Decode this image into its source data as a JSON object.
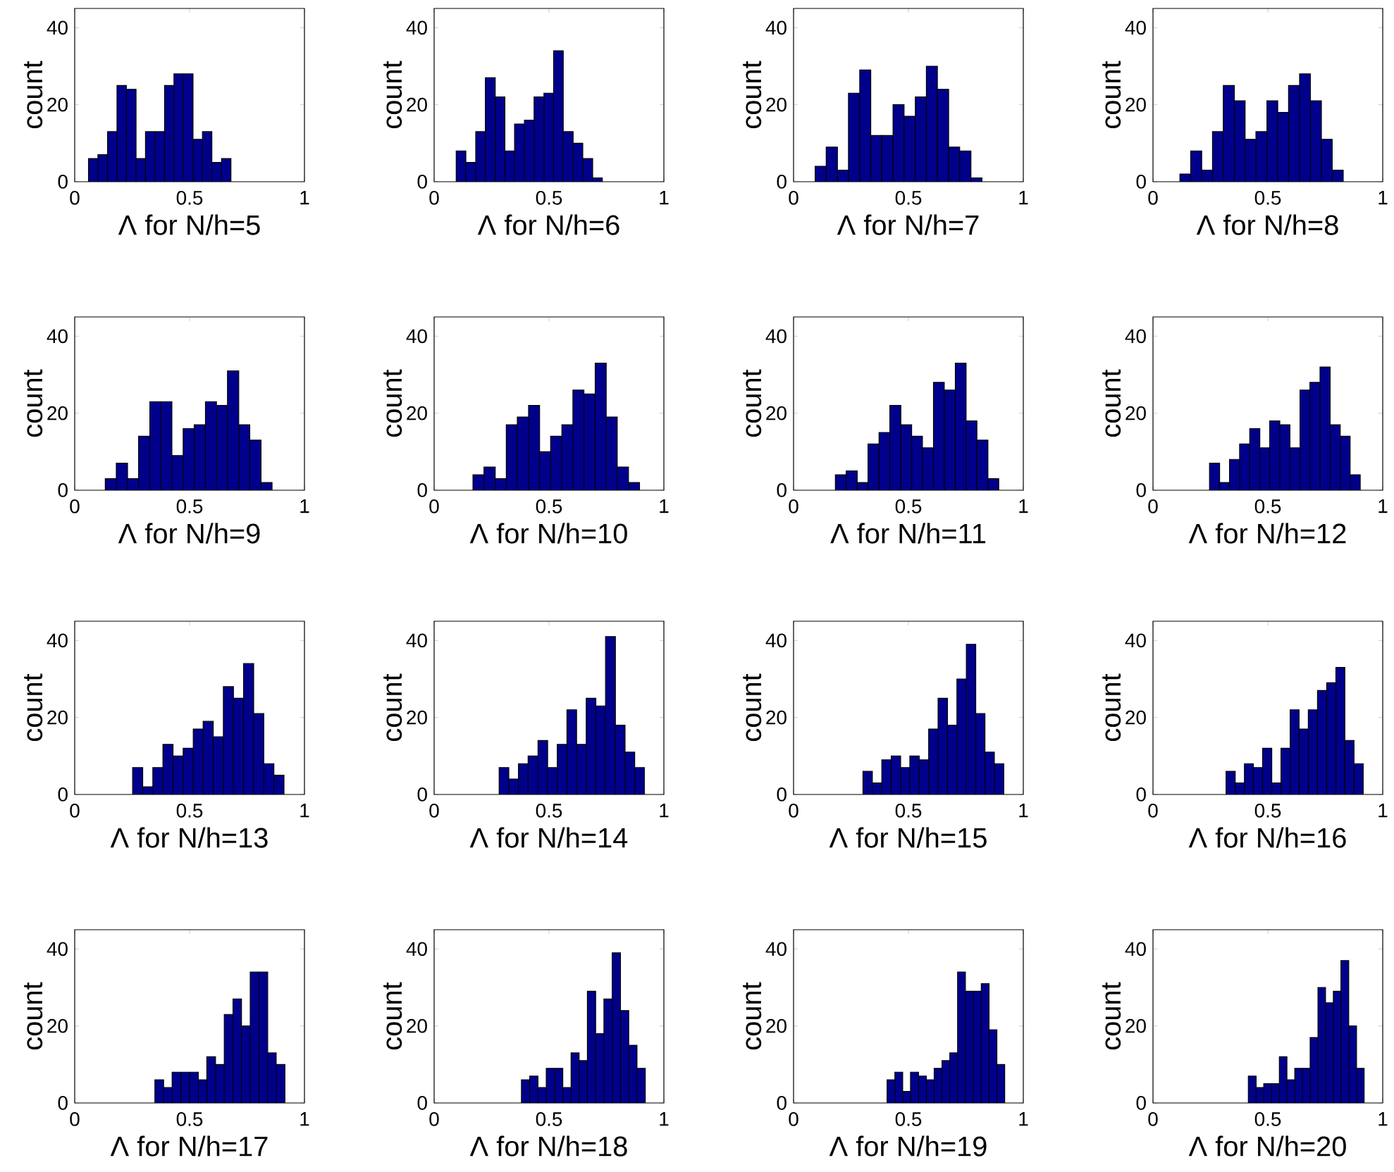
{
  "chart_data": [
    {
      "type": "histogram",
      "xlabel": "Λ for N/h=5",
      "ylabel": "count",
      "color": "#00008b",
      "xlim": [
        0,
        1
      ],
      "xticks": [
        0,
        0.5,
        1
      ],
      "ylim": [
        0,
        45
      ],
      "yticks": [
        0,
        20,
        40
      ],
      "bins": [
        0.06,
        0.101,
        0.143,
        0.184,
        0.225,
        0.267,
        0.308,
        0.349,
        0.391,
        0.432,
        0.473,
        0.515,
        0.556,
        0.597,
        0.639,
        0.68
      ],
      "values": [
        6,
        7,
        13,
        25,
        24,
        6,
        13,
        13,
        25,
        28,
        28,
        11,
        13,
        5,
        6
      ]
    },
    {
      "type": "histogram",
      "xlabel": "Λ for N/h=6",
      "ylabel": "count",
      "color": "#00008b",
      "xlim": [
        0,
        1
      ],
      "xticks": [
        0,
        0.5,
        1
      ],
      "ylim": [
        0,
        45
      ],
      "yticks": [
        0,
        20,
        40
      ],
      "bins": [
        0.096,
        0.138,
        0.181,
        0.223,
        0.266,
        0.308,
        0.35,
        0.393,
        0.435,
        0.478,
        0.52,
        0.562,
        0.605,
        0.647,
        0.69,
        0.732
      ],
      "values": [
        8,
        5,
        13,
        27,
        22,
        8,
        15,
        16,
        22,
        23,
        34,
        13,
        10,
        6,
        1
      ]
    },
    {
      "type": "histogram",
      "xlabel": "Λ for N/h=7",
      "ylabel": "count",
      "color": "#00008b",
      "xlim": [
        0,
        1
      ],
      "xticks": [
        0,
        0.5,
        1
      ],
      "ylim": [
        0,
        45
      ],
      "yticks": [
        0,
        20,
        40
      ],
      "bins": [
        0.094,
        0.142,
        0.191,
        0.239,
        0.288,
        0.336,
        0.384,
        0.433,
        0.481,
        0.53,
        0.578,
        0.626,
        0.675,
        0.723,
        0.772,
        0.82
      ],
      "values": [
        4,
        9,
        3,
        23,
        29,
        12,
        12,
        20,
        17,
        22,
        30,
        24,
        9,
        8,
        1
      ]
    },
    {
      "type": "histogram",
      "xlabel": "Λ for N/h=8",
      "ylabel": "count",
      "color": "#00008b",
      "xlim": [
        0,
        1
      ],
      "xticks": [
        0,
        0.5,
        1
      ],
      "ylim": [
        0,
        45
      ],
      "yticks": [
        0,
        20,
        40
      ],
      "bins": [
        0.117,
        0.164,
        0.212,
        0.259,
        0.306,
        0.354,
        0.401,
        0.448,
        0.496,
        0.543,
        0.59,
        0.638,
        0.685,
        0.733,
        0.78,
        0.828
      ],
      "values": [
        2,
        8,
        3,
        13,
        25,
        21,
        11,
        13,
        21,
        18,
        25,
        28,
        21,
        11,
        3
      ]
    },
    {
      "type": "histogram",
      "xlabel": "Λ for N/h=9",
      "ylabel": "count",
      "color": "#00008b",
      "xlim": [
        0,
        1
      ],
      "xticks": [
        0,
        0.5,
        1
      ],
      "ylim": [
        0,
        45
      ],
      "yticks": [
        0,
        20,
        40
      ],
      "bins": [
        0.133,
        0.181,
        0.23,
        0.278,
        0.327,
        0.375,
        0.423,
        0.472,
        0.52,
        0.569,
        0.617,
        0.665,
        0.714,
        0.762,
        0.811,
        0.859
      ],
      "values": [
        3,
        7,
        3,
        14,
        23,
        23,
        9,
        16,
        17,
        23,
        22,
        31,
        17,
        13,
        2
      ]
    },
    {
      "type": "histogram",
      "xlabel": "Λ for N/h=10",
      "ylabel": "count",
      "color": "#00008b",
      "xlim": [
        0,
        1
      ],
      "xticks": [
        0,
        0.5,
        1
      ],
      "ylim": [
        0,
        45
      ],
      "yticks": [
        0,
        20,
        40
      ],
      "bins": [
        0.169,
        0.217,
        0.266,
        0.314,
        0.362,
        0.411,
        0.459,
        0.507,
        0.556,
        0.604,
        0.652,
        0.701,
        0.749,
        0.797,
        0.846,
        0.894
      ],
      "values": [
        4,
        6,
        3,
        17,
        19,
        22,
        10,
        14,
        17,
        26,
        25,
        33,
        19,
        6,
        2
      ]
    },
    {
      "type": "histogram",
      "xlabel": "Λ for N/h=11",
      "ylabel": "count",
      "color": "#00008b",
      "xlim": [
        0,
        1
      ],
      "xticks": [
        0,
        0.5,
        1
      ],
      "ylim": [
        0,
        45
      ],
      "yticks": [
        0,
        20,
        40
      ],
      "bins": [
        0.182,
        0.229,
        0.277,
        0.324,
        0.372,
        0.419,
        0.467,
        0.514,
        0.561,
        0.609,
        0.656,
        0.704,
        0.751,
        0.798,
        0.846,
        0.893
      ],
      "values": [
        4,
        5,
        2,
        12,
        15,
        22,
        17,
        14,
        11,
        28,
        26,
        33,
        18,
        13,
        3
      ]
    },
    {
      "type": "histogram",
      "xlabel": "Λ for N/h=12",
      "ylabel": "count",
      "color": "#00008b",
      "xlim": [
        0,
        1
      ],
      "xticks": [
        0,
        0.5,
        1
      ],
      "ylim": [
        0,
        45
      ],
      "yticks": [
        0,
        20,
        40
      ],
      "bins": [
        0.246,
        0.29,
        0.333,
        0.377,
        0.421,
        0.465,
        0.508,
        0.552,
        0.596,
        0.64,
        0.683,
        0.727,
        0.771,
        0.815,
        0.858,
        0.902
      ],
      "values": [
        7,
        2,
        8,
        12,
        16,
        11,
        18,
        17,
        11,
        26,
        28,
        32,
        17,
        14,
        4
      ]
    },
    {
      "type": "histogram",
      "xlabel": "Λ for N/h=13",
      "ylabel": "count",
      "color": "#00008b",
      "xlim": [
        0,
        1
      ],
      "xticks": [
        0,
        0.5,
        1
      ],
      "ylim": [
        0,
        45
      ],
      "yticks": [
        0,
        20,
        40
      ],
      "bins": [
        0.252,
        0.296,
        0.34,
        0.384,
        0.428,
        0.472,
        0.516,
        0.559,
        0.603,
        0.647,
        0.691,
        0.735,
        0.779,
        0.823,
        0.867,
        0.911
      ],
      "values": [
        7,
        2,
        7,
        13,
        10,
        12,
        17,
        19,
        15,
        28,
        25,
        34,
        21,
        8,
        5
      ]
    },
    {
      "type": "histogram",
      "xlabel": "Λ for N/h=14",
      "ylabel": "count",
      "color": "#00008b",
      "xlim": [
        0,
        1
      ],
      "xticks": [
        0,
        0.5,
        1
      ],
      "ylim": [
        0,
        45
      ],
      "yticks": [
        0,
        20,
        40
      ],
      "bins": [
        0.283,
        0.325,
        0.367,
        0.409,
        0.452,
        0.494,
        0.536,
        0.578,
        0.62,
        0.662,
        0.704,
        0.746,
        0.789,
        0.831,
        0.873,
        0.915
      ],
      "values": [
        7,
        4,
        8,
        10,
        14,
        7,
        13,
        22,
        13,
        25,
        23,
        41,
        18,
        11,
        7
      ]
    },
    {
      "type": "histogram",
      "xlabel": "Λ for N/h=15",
      "ylabel": "count",
      "color": "#00008b",
      "xlim": [
        0,
        1
      ],
      "xticks": [
        0,
        0.5,
        1
      ],
      "ylim": [
        0,
        45
      ],
      "yticks": [
        0,
        20,
        40
      ],
      "bins": [
        0.302,
        0.343,
        0.384,
        0.425,
        0.466,
        0.506,
        0.547,
        0.588,
        0.629,
        0.67,
        0.711,
        0.752,
        0.793,
        0.833,
        0.874,
        0.915
      ],
      "values": [
        6,
        3,
        9,
        10,
        7,
        10,
        9,
        17,
        25,
        18,
        30,
        39,
        21,
        11,
        8
      ]
    },
    {
      "type": "histogram",
      "xlabel": "Λ for N/h=16",
      "ylabel": "count",
      "color": "#00008b",
      "xlim": [
        0,
        1
      ],
      "xticks": [
        0,
        0.5,
        1
      ],
      "ylim": [
        0,
        45
      ],
      "yticks": [
        0,
        20,
        40
      ],
      "bins": [
        0.318,
        0.358,
        0.398,
        0.437,
        0.477,
        0.517,
        0.557,
        0.597,
        0.636,
        0.676,
        0.716,
        0.756,
        0.796,
        0.835,
        0.875,
        0.915
      ],
      "values": [
        6,
        3,
        8,
        7,
        12,
        3,
        12,
        22,
        17,
        22,
        27,
        29,
        33,
        14,
        8
      ]
    },
    {
      "type": "histogram",
      "xlabel": "Λ for N/h=17",
      "ylabel": "count",
      "color": "#00008b",
      "xlim": [
        0,
        1
      ],
      "xticks": [
        0,
        0.5,
        1
      ],
      "ylim": [
        0,
        45
      ],
      "yticks": [
        0,
        20,
        40
      ],
      "bins": [
        0.349,
        0.387,
        0.424,
        0.462,
        0.5,
        0.538,
        0.575,
        0.613,
        0.651,
        0.689,
        0.726,
        0.764,
        0.802,
        0.84,
        0.877,
        0.915
      ],
      "values": [
        6,
        4,
        8,
        8,
        8,
        6,
        12,
        10,
        23,
        27,
        20,
        34,
        34,
        13,
        10
      ]
    },
    {
      "type": "histogram",
      "xlabel": "Λ for N/h=18",
      "ylabel": "count",
      "color": "#00008b",
      "xlim": [
        0,
        1
      ],
      "xticks": [
        0,
        0.5,
        1
      ],
      "ylim": [
        0,
        45
      ],
      "yticks": [
        0,
        20,
        40
      ],
      "bins": [
        0.38,
        0.416,
        0.452,
        0.488,
        0.524,
        0.56,
        0.596,
        0.631,
        0.667,
        0.703,
        0.739,
        0.775,
        0.811,
        0.847,
        0.883,
        0.919
      ],
      "values": [
        6,
        7,
        4,
        9,
        9,
        4,
        13,
        11,
        29,
        18,
        27,
        39,
        24,
        15,
        9
      ]
    },
    {
      "type": "histogram",
      "xlabel": "Λ for N/h=19",
      "ylabel": "count",
      "color": "#00008b",
      "xlim": [
        0,
        1
      ],
      "xticks": [
        0,
        0.5,
        1
      ],
      "ylim": [
        0,
        45
      ],
      "yticks": [
        0,
        20,
        40
      ],
      "bins": [
        0.407,
        0.441,
        0.475,
        0.509,
        0.544,
        0.578,
        0.612,
        0.646,
        0.68,
        0.714,
        0.748,
        0.783,
        0.817,
        0.851,
        0.885,
        0.919
      ],
      "values": [
        6,
        8,
        3,
        8,
        7,
        6,
        9,
        11,
        13,
        34,
        29,
        29,
        31,
        19,
        10
      ]
    },
    {
      "type": "histogram",
      "xlabel": "Λ for N/h=20",
      "ylabel": "count",
      "color": "#00008b",
      "xlim": [
        0,
        1
      ],
      "xticks": [
        0,
        0.5,
        1
      ],
      "ylim": [
        0,
        45
      ],
      "yticks": [
        0,
        20,
        40
      ],
      "bins": [
        0.415,
        0.449,
        0.482,
        0.516,
        0.55,
        0.583,
        0.617,
        0.65,
        0.684,
        0.718,
        0.751,
        0.785,
        0.818,
        0.852,
        0.886,
        0.919
      ],
      "values": [
        7,
        4,
        5,
        5,
        12,
        6,
        9,
        9,
        17,
        30,
        26,
        29,
        37,
        20,
        9
      ]
    }
  ]
}
